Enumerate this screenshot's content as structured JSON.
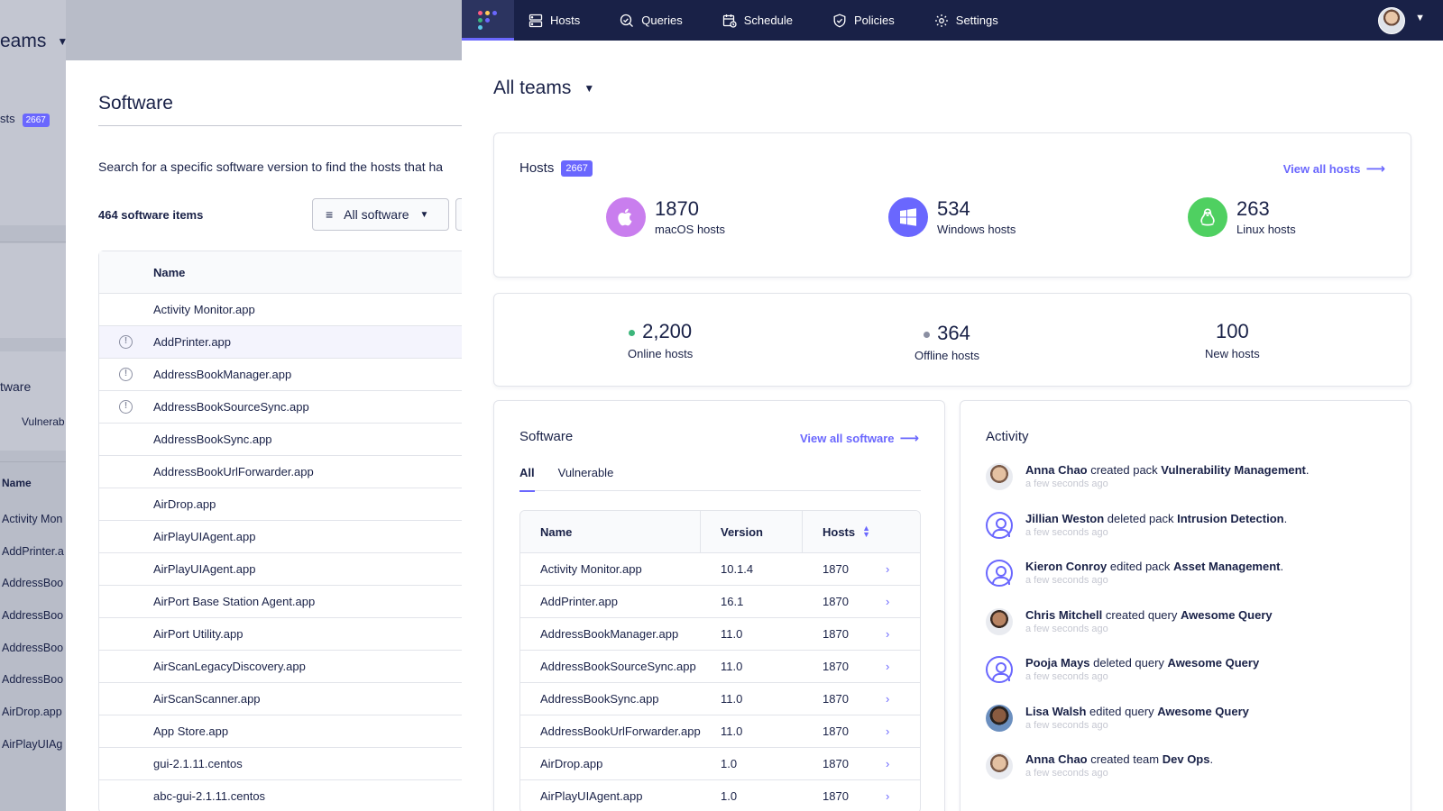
{
  "background": {
    "title": "eams",
    "hosts_label": "sts",
    "hosts_badge": "2667",
    "software_label": "tware",
    "vulnerable_label": "Vulnerab",
    "name_header": "Name",
    "rows": [
      "Activity Mon",
      "AddPrinter.a",
      "AddressBoo",
      "AddressBoo",
      "AddressBoo",
      "AddressBoo",
      "AirDrop.app",
      "AirPlayUIAg"
    ]
  },
  "modal": {
    "title": "Software",
    "description": "Search for a specific software version to find the hosts that ha",
    "count": "464 software items",
    "filter_label": "All software",
    "name_header": "Name",
    "rows": [
      {
        "name": "Activity Monitor.app",
        "warn": false
      },
      {
        "name": "AddPrinter.app",
        "warn": true
      },
      {
        "name": "AddressBookManager.app",
        "warn": true
      },
      {
        "name": "AddressBookSourceSync.app",
        "warn": true
      },
      {
        "name": "AddressBookSync.app",
        "warn": false
      },
      {
        "name": "AddressBookUrlForwarder.app",
        "warn": false
      },
      {
        "name": "AirDrop.app",
        "warn": false
      },
      {
        "name": "AirPlayUIAgent.app",
        "warn": false
      },
      {
        "name": "AirPlayUIAgent.app",
        "warn": false
      },
      {
        "name": "AirPort Base Station Agent.app",
        "warn": false
      },
      {
        "name": "AirPort Utility.app",
        "warn": false
      },
      {
        "name": "AirScanLegacyDiscovery.app",
        "warn": false
      },
      {
        "name": "AirScanScanner.app",
        "warn": false
      },
      {
        "name": "App Store.app",
        "warn": false
      },
      {
        "name": "gui-2.1.11.centos",
        "warn": false
      },
      {
        "name": "abc-gui-2.1.11.centos",
        "warn": false
      }
    ]
  },
  "nav": {
    "items": [
      {
        "label": "Hosts",
        "icon": "hosts-icon"
      },
      {
        "label": "Queries",
        "icon": "queries-icon"
      },
      {
        "label": "Schedule",
        "icon": "schedule-icon"
      },
      {
        "label": "Policies",
        "icon": "policies-icon"
      },
      {
        "label": "Settings",
        "icon": "settings-icon"
      }
    ]
  },
  "dashboard": {
    "teams_title": "All teams",
    "hosts": {
      "title": "Hosts",
      "badge": "2667",
      "view_all": "View all hosts",
      "platforms": [
        {
          "count": "1870",
          "label": "macOS hosts",
          "icon": "apple-icon",
          "color": "#c97eee"
        },
        {
          "count": "534",
          "label": "Windows hosts",
          "icon": "windows-icon",
          "color": "#6a67fe"
        },
        {
          "count": "263",
          "label": "Linux hosts",
          "icon": "linux-icon",
          "color": "#4fd061"
        }
      ]
    },
    "status": {
      "online_count": "2,200",
      "online_label": "Online hosts",
      "offline_count": "364",
      "offline_label": "Offline hosts",
      "new_count": "100",
      "new_label": "New hosts",
      "online_color": "#3db67b",
      "offline_color": "#8b8fa2"
    },
    "software": {
      "title": "Software",
      "view_all": "View all software",
      "tabs": [
        "All",
        "Vulnerable"
      ],
      "headers": {
        "name": "Name",
        "version": "Version",
        "hosts": "Hosts"
      },
      "rows": [
        {
          "name": "Activity Monitor.app",
          "version": "10.1.4",
          "hosts": "1870"
        },
        {
          "name": "AddPrinter.app",
          "version": "16.1",
          "hosts": "1870"
        },
        {
          "name": "AddressBookManager.app",
          "version": "11.0",
          "hosts": "1870"
        },
        {
          "name": "AddressBookSourceSync.app",
          "version": "11.0",
          "hosts": "1870"
        },
        {
          "name": "AddressBookSync.app",
          "version": "11.0",
          "hosts": "1870"
        },
        {
          "name": "AddressBookUrlForwarder.app",
          "version": "11.0",
          "hosts": "1870"
        },
        {
          "name": "AirDrop.app",
          "version": "1.0",
          "hosts": "1870"
        },
        {
          "name": "AirPlayUIAgent.app",
          "version": "1.0",
          "hosts": "1870"
        }
      ]
    },
    "activity": {
      "title": "Activity",
      "items": [
        {
          "actor": "Anna Chao",
          "action": " created pack ",
          "target": "Vulnerability Management",
          "end": ".",
          "time": "a few seconds ago",
          "avatar": "photo"
        },
        {
          "actor": "Jillian Weston",
          "action": " deleted pack ",
          "target": "Intrusion Detection",
          "end": ".",
          "time": "a few seconds ago",
          "avatar": "generic"
        },
        {
          "actor": "Kieron Conroy",
          "action": " edited pack ",
          "target": "Asset Management",
          "end": ".",
          "time": "a few seconds ago",
          "avatar": "generic"
        },
        {
          "actor": "Chris Mitchell",
          "action": " created query ",
          "target": "Awesome Query",
          "end": "",
          "time": "a few seconds ago",
          "avatar": "photo2"
        },
        {
          "actor": "Pooja Mays",
          "action": " deleted query ",
          "target": "Awesome Query",
          "end": "",
          "time": "a few seconds ago",
          "avatar": "generic"
        },
        {
          "actor": "Lisa Walsh",
          "action": " edited query ",
          "target": "Awesome Query",
          "end": "",
          "time": "a few seconds ago",
          "avatar": "photo3"
        },
        {
          "actor": "Anna Chao",
          "action": " created team ",
          "target": "Dev Ops",
          "end": ".",
          "time": "a few seconds ago",
          "avatar": "photo"
        }
      ]
    }
  }
}
